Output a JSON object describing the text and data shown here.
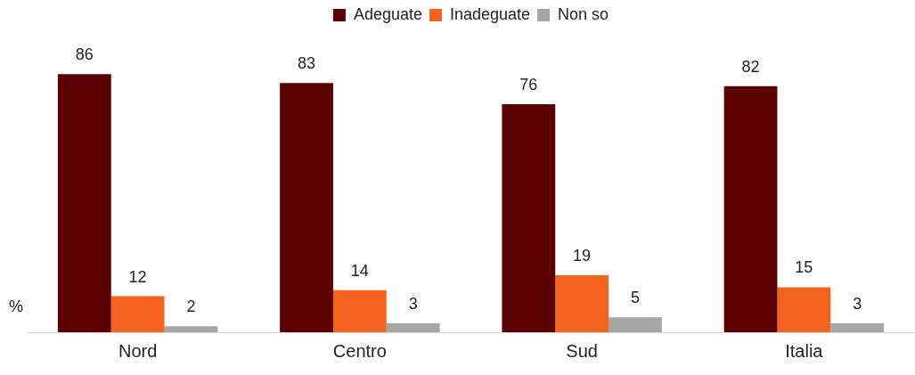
{
  "chart_data": {
    "type": "bar",
    "ylabel": "%",
    "categories": [
      "Nord",
      "Centro",
      "Sud",
      "Italia"
    ],
    "series": [
      {
        "name": "Adeguate",
        "color": "#5a0000",
        "values": [
          86,
          83,
          76,
          82
        ]
      },
      {
        "name": "Inadeguate",
        "color": "#f4631e",
        "values": [
          12,
          14,
          19,
          15
        ]
      },
      {
        "name": "Non so",
        "color": "#a6a6a6",
        "values": [
          2,
          3,
          5,
          3
        ]
      }
    ],
    "data_labels": true,
    "legend": "top",
    "grid": false
  }
}
